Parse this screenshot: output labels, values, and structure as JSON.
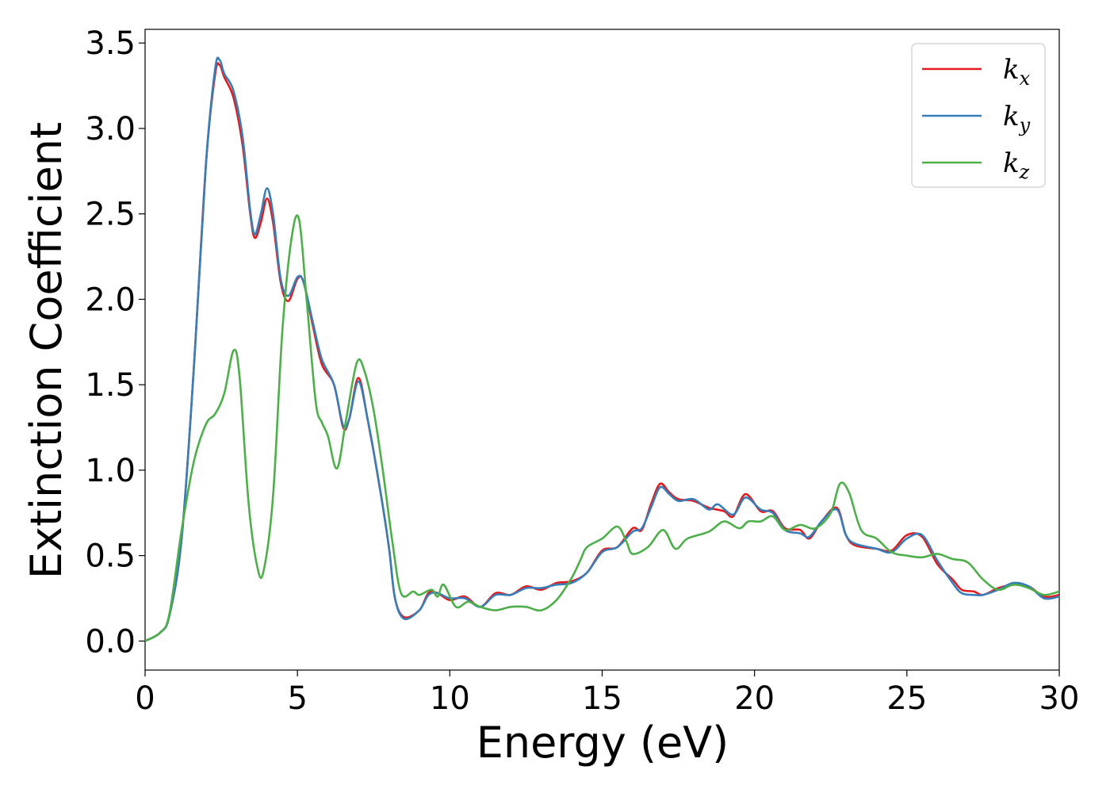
{
  "chart_data": {
    "type": "line",
    "xlabel": "Energy (eV)",
    "ylabel": "Extinction Coefficient",
    "xlim": [
      0,
      30
    ],
    "ylim": [
      -0.17,
      3.58
    ],
    "xticks": [
      0,
      5,
      10,
      15,
      20,
      25,
      30
    ],
    "xtick_labels": [
      "0",
      "5",
      "10",
      "15",
      "20",
      "25",
      "30"
    ],
    "yticks": [
      0.0,
      0.5,
      1.0,
      1.5,
      2.0,
      2.5,
      3.0,
      3.5
    ],
    "ytick_labels": [
      "0.0",
      "0.5",
      "1.0",
      "1.5",
      "2.0",
      "2.5",
      "3.0",
      "3.5"
    ],
    "grid": false,
    "legend_position": "top-right",
    "series": [
      {
        "name": "k",
        "subscript": "x",
        "color": "#e41a1c",
        "points": [
          [
            0,
            0
          ],
          [
            0.5,
            0.05
          ],
          [
            0.8,
            0.15
          ],
          [
            1.2,
            0.6
          ],
          [
            1.6,
            1.6
          ],
          [
            2.0,
            2.8
          ],
          [
            2.3,
            3.32
          ],
          [
            2.45,
            3.37
          ],
          [
            2.6,
            3.3
          ],
          [
            2.9,
            3.18
          ],
          [
            3.2,
            2.9
          ],
          [
            3.45,
            2.5
          ],
          [
            3.6,
            2.36
          ],
          [
            3.8,
            2.45
          ],
          [
            4.0,
            2.59
          ],
          [
            4.2,
            2.45
          ],
          [
            4.45,
            2.1
          ],
          [
            4.7,
            1.99
          ],
          [
            5.0,
            2.12
          ],
          [
            5.2,
            2.1
          ],
          [
            5.5,
            1.85
          ],
          [
            5.8,
            1.62
          ],
          [
            6.2,
            1.5
          ],
          [
            6.5,
            1.25
          ],
          [
            6.7,
            1.3
          ],
          [
            7.0,
            1.54
          ],
          [
            7.3,
            1.3
          ],
          [
            7.7,
            0.9
          ],
          [
            8.0,
            0.55
          ],
          [
            8.2,
            0.25
          ],
          [
            8.5,
            0.14
          ],
          [
            9.0,
            0.18
          ],
          [
            9.3,
            0.28
          ],
          [
            9.6,
            0.28
          ],
          [
            10.0,
            0.24
          ],
          [
            10.5,
            0.26
          ],
          [
            11.0,
            0.2
          ],
          [
            11.5,
            0.28
          ],
          [
            12.0,
            0.27
          ],
          [
            12.5,
            0.32
          ],
          [
            13.0,
            0.3
          ],
          [
            13.5,
            0.34
          ],
          [
            14.0,
            0.35
          ],
          [
            14.5,
            0.4
          ],
          [
            15.0,
            0.53
          ],
          [
            15.5,
            0.55
          ],
          [
            16.0,
            0.66
          ],
          [
            16.3,
            0.65
          ],
          [
            16.6,
            0.8
          ],
          [
            16.9,
            0.92
          ],
          [
            17.2,
            0.87
          ],
          [
            17.5,
            0.83
          ],
          [
            18.0,
            0.82
          ],
          [
            18.5,
            0.78
          ],
          [
            19.0,
            0.76
          ],
          [
            19.3,
            0.73
          ],
          [
            19.7,
            0.86
          ],
          [
            20.2,
            0.76
          ],
          [
            20.6,
            0.76
          ],
          [
            21.0,
            0.66
          ],
          [
            21.5,
            0.65
          ],
          [
            21.8,
            0.6
          ],
          [
            22.2,
            0.7
          ],
          [
            22.7,
            0.78
          ],
          [
            23.0,
            0.62
          ],
          [
            23.3,
            0.56
          ],
          [
            24.0,
            0.54
          ],
          [
            24.5,
            0.53
          ],
          [
            25.0,
            0.62
          ],
          [
            25.5,
            0.61
          ],
          [
            26.0,
            0.45
          ],
          [
            26.5,
            0.36
          ],
          [
            26.8,
            0.3
          ],
          [
            27.2,
            0.29
          ],
          [
            27.5,
            0.27
          ],
          [
            28.0,
            0.31
          ],
          [
            28.5,
            0.33
          ],
          [
            29.0,
            0.32
          ],
          [
            29.5,
            0.26
          ],
          [
            30.0,
            0.27
          ]
        ]
      },
      {
        "name": "k",
        "subscript": "y",
        "color": "#377eb8",
        "points": [
          [
            0,
            0
          ],
          [
            0.5,
            0.05
          ],
          [
            0.8,
            0.15
          ],
          [
            1.2,
            0.6
          ],
          [
            1.6,
            1.6
          ],
          [
            2.0,
            2.8
          ],
          [
            2.3,
            3.35
          ],
          [
            2.45,
            3.4
          ],
          [
            2.6,
            3.32
          ],
          [
            2.9,
            3.22
          ],
          [
            3.2,
            2.95
          ],
          [
            3.45,
            2.52
          ],
          [
            3.6,
            2.38
          ],
          [
            3.8,
            2.5
          ],
          [
            4.0,
            2.65
          ],
          [
            4.2,
            2.5
          ],
          [
            4.45,
            2.12
          ],
          [
            4.7,
            2.02
          ],
          [
            5.0,
            2.13
          ],
          [
            5.2,
            2.1
          ],
          [
            5.5,
            1.87
          ],
          [
            5.8,
            1.65
          ],
          [
            6.2,
            1.5
          ],
          [
            6.5,
            1.26
          ],
          [
            6.7,
            1.3
          ],
          [
            7.0,
            1.52
          ],
          [
            7.3,
            1.3
          ],
          [
            7.7,
            0.9
          ],
          [
            8.0,
            0.55
          ],
          [
            8.2,
            0.25
          ],
          [
            8.5,
            0.13
          ],
          [
            9.0,
            0.18
          ],
          [
            9.3,
            0.27
          ],
          [
            9.6,
            0.28
          ],
          [
            10.0,
            0.25
          ],
          [
            10.5,
            0.25
          ],
          [
            11.0,
            0.2
          ],
          [
            11.5,
            0.27
          ],
          [
            12.0,
            0.27
          ],
          [
            12.5,
            0.31
          ],
          [
            13.0,
            0.31
          ],
          [
            13.5,
            0.33
          ],
          [
            14.0,
            0.34
          ],
          [
            14.5,
            0.4
          ],
          [
            15.0,
            0.52
          ],
          [
            15.5,
            0.55
          ],
          [
            16.0,
            0.64
          ],
          [
            16.3,
            0.66
          ],
          [
            16.6,
            0.78
          ],
          [
            16.9,
            0.9
          ],
          [
            17.2,
            0.86
          ],
          [
            17.5,
            0.82
          ],
          [
            18.0,
            0.83
          ],
          [
            18.5,
            0.77
          ],
          [
            18.8,
            0.8
          ],
          [
            19.3,
            0.74
          ],
          [
            19.7,
            0.84
          ],
          [
            20.2,
            0.77
          ],
          [
            20.6,
            0.75
          ],
          [
            21.0,
            0.65
          ],
          [
            21.5,
            0.63
          ],
          [
            21.8,
            0.61
          ],
          [
            22.2,
            0.7
          ],
          [
            22.7,
            0.77
          ],
          [
            23.0,
            0.62
          ],
          [
            23.3,
            0.57
          ],
          [
            24.0,
            0.54
          ],
          [
            24.5,
            0.52
          ],
          [
            25.0,
            0.6
          ],
          [
            25.5,
            0.62
          ],
          [
            26.0,
            0.47
          ],
          [
            26.5,
            0.34
          ],
          [
            26.8,
            0.28
          ],
          [
            27.2,
            0.27
          ],
          [
            27.5,
            0.27
          ],
          [
            28.0,
            0.3
          ],
          [
            28.5,
            0.34
          ],
          [
            29.0,
            0.32
          ],
          [
            29.5,
            0.25
          ],
          [
            30.0,
            0.26
          ]
        ]
      },
      {
        "name": "k",
        "subscript": "z",
        "color": "#4daf4a",
        "points": [
          [
            0,
            0
          ],
          [
            0.5,
            0.05
          ],
          [
            0.8,
            0.16
          ],
          [
            1.2,
            0.65
          ],
          [
            1.6,
            1.05
          ],
          [
            2.0,
            1.27
          ],
          [
            2.3,
            1.33
          ],
          [
            2.6,
            1.45
          ],
          [
            2.9,
            1.7
          ],
          [
            3.1,
            1.55
          ],
          [
            3.4,
            0.8
          ],
          [
            3.7,
            0.42
          ],
          [
            3.9,
            0.42
          ],
          [
            4.2,
            0.85
          ],
          [
            4.5,
            1.8
          ],
          [
            4.8,
            2.35
          ],
          [
            5.05,
            2.47
          ],
          [
            5.3,
            2.0
          ],
          [
            5.6,
            1.4
          ],
          [
            5.8,
            1.28
          ],
          [
            6.0,
            1.2
          ],
          [
            6.3,
            1.01
          ],
          [
            6.6,
            1.3
          ],
          [
            6.95,
            1.63
          ],
          [
            7.2,
            1.58
          ],
          [
            7.5,
            1.35
          ],
          [
            7.8,
            1.0
          ],
          [
            8.1,
            0.6
          ],
          [
            8.4,
            0.28
          ],
          [
            8.8,
            0.29
          ],
          [
            9.0,
            0.27
          ],
          [
            9.4,
            0.3
          ],
          [
            9.6,
            0.26
          ],
          [
            9.8,
            0.33
          ],
          [
            10.2,
            0.2
          ],
          [
            10.6,
            0.23
          ],
          [
            11.0,
            0.2
          ],
          [
            11.5,
            0.18
          ],
          [
            12.0,
            0.2
          ],
          [
            12.5,
            0.2
          ],
          [
            13.0,
            0.18
          ],
          [
            13.5,
            0.24
          ],
          [
            14.0,
            0.37
          ],
          [
            14.3,
            0.48
          ],
          [
            14.5,
            0.55
          ],
          [
            15.0,
            0.6
          ],
          [
            15.5,
            0.67
          ],
          [
            15.8,
            0.58
          ],
          [
            16.0,
            0.51
          ],
          [
            16.5,
            0.55
          ],
          [
            17.0,
            0.65
          ],
          [
            17.4,
            0.54
          ],
          [
            17.8,
            0.6
          ],
          [
            18.5,
            0.64
          ],
          [
            19.0,
            0.7
          ],
          [
            19.5,
            0.66
          ],
          [
            19.8,
            0.7
          ],
          [
            20.2,
            0.7
          ],
          [
            20.6,
            0.73
          ],
          [
            21.0,
            0.65
          ],
          [
            21.5,
            0.68
          ],
          [
            22.0,
            0.66
          ],
          [
            22.5,
            0.75
          ],
          [
            22.8,
            0.92
          ],
          [
            23.1,
            0.87
          ],
          [
            23.5,
            0.65
          ],
          [
            24.0,
            0.6
          ],
          [
            24.5,
            0.52
          ],
          [
            25.0,
            0.5
          ],
          [
            25.5,
            0.49
          ],
          [
            26.0,
            0.51
          ],
          [
            26.5,
            0.48
          ],
          [
            27.0,
            0.46
          ],
          [
            27.5,
            0.36
          ],
          [
            28.0,
            0.3
          ],
          [
            28.5,
            0.33
          ],
          [
            29.0,
            0.31
          ],
          [
            29.5,
            0.27
          ],
          [
            30.0,
            0.29
          ]
        ]
      }
    ]
  }
}
